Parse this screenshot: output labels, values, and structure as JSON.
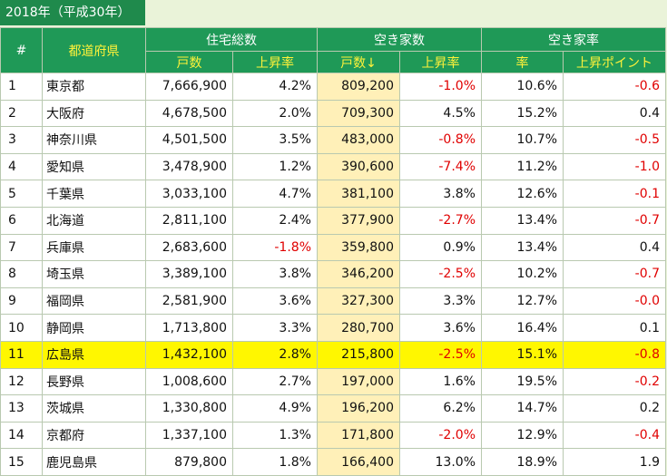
{
  "caption": "2018年（平成30年）",
  "headers": {
    "num": "#",
    "pref": "都道府県",
    "housing": "住宅総数",
    "vacant": "空き家数",
    "vacancy_rate": "空き家率",
    "count": "戸数",
    "rise_rate": "上昇率",
    "count_sorted": "戸数↓",
    "rate": "率",
    "rise_points": "上昇ポイント"
  },
  "rows": [
    {
      "num": "1",
      "pref": "東京都",
      "housing": "7,666,900",
      "housing_rise": "4.2%",
      "vacant": "809,200",
      "vacant_rise": "-1.0%",
      "rate": "10.6%",
      "points": "-0.6"
    },
    {
      "num": "2",
      "pref": "大阪府",
      "housing": "4,678,500",
      "housing_rise": "2.0%",
      "vacant": "709,300",
      "vacant_rise": "4.5%",
      "rate": "15.2%",
      "points": "0.4"
    },
    {
      "num": "3",
      "pref": "神奈川県",
      "housing": "4,501,500",
      "housing_rise": "3.5%",
      "vacant": "483,000",
      "vacant_rise": "-0.8%",
      "rate": "10.7%",
      "points": "-0.5"
    },
    {
      "num": "4",
      "pref": "愛知県",
      "housing": "3,478,900",
      "housing_rise": "1.2%",
      "vacant": "390,600",
      "vacant_rise": "-7.4%",
      "rate": "11.2%",
      "points": "-1.0"
    },
    {
      "num": "5",
      "pref": "千葉県",
      "housing": "3,033,100",
      "housing_rise": "4.7%",
      "vacant": "381,100",
      "vacant_rise": "3.8%",
      "rate": "12.6%",
      "points": "-0.1"
    },
    {
      "num": "6",
      "pref": "北海道",
      "housing": "2,811,100",
      "housing_rise": "2.4%",
      "vacant": "377,900",
      "vacant_rise": "-2.7%",
      "rate": "13.4%",
      "points": "-0.7"
    },
    {
      "num": "7",
      "pref": "兵庫県",
      "housing": "2,683,600",
      "housing_rise": "-1.8%",
      "vacant": "359,800",
      "vacant_rise": "0.9%",
      "rate": "13.4%",
      "points": "0.4"
    },
    {
      "num": "8",
      "pref": "埼玉県",
      "housing": "3,389,100",
      "housing_rise": "3.8%",
      "vacant": "346,200",
      "vacant_rise": "-2.5%",
      "rate": "10.2%",
      "points": "-0.7"
    },
    {
      "num": "9",
      "pref": "福岡県",
      "housing": "2,581,900",
      "housing_rise": "3.6%",
      "vacant": "327,300",
      "vacant_rise": "3.3%",
      "rate": "12.7%",
      "points": "-0.0"
    },
    {
      "num": "10",
      "pref": "静岡県",
      "housing": "1,713,800",
      "housing_rise": "3.3%",
      "vacant": "280,700",
      "vacant_rise": "3.6%",
      "rate": "16.4%",
      "points": "0.1"
    },
    {
      "num": "11",
      "pref": "広島県",
      "housing": "1,432,100",
      "housing_rise": "2.8%",
      "vacant": "215,800",
      "vacant_rise": "-2.5%",
      "rate": "15.1%",
      "points": "-0.8",
      "highlight": true
    },
    {
      "num": "12",
      "pref": "長野県",
      "housing": "1,008,600",
      "housing_rise": "2.7%",
      "vacant": "197,000",
      "vacant_rise": "1.6%",
      "rate": "19.5%",
      "points": "-0.2"
    },
    {
      "num": "13",
      "pref": "茨城県",
      "housing": "1,330,800",
      "housing_rise": "4.9%",
      "vacant": "196,200",
      "vacant_rise": "6.2%",
      "rate": "14.7%",
      "points": "0.2"
    },
    {
      "num": "14",
      "pref": "京都府",
      "housing": "1,337,100",
      "housing_rise": "1.3%",
      "vacant": "171,800",
      "vacant_rise": "-2.0%",
      "rate": "12.9%",
      "points": "-0.4"
    },
    {
      "num": "15",
      "pref": "鹿児島県",
      "housing": "879,800",
      "housing_rise": "1.8%",
      "vacant": "166,400",
      "vacant_rise": "13.0%",
      "rate": "18.9%",
      "points": "1.9"
    }
  ],
  "colors": {
    "header": "#1f9957",
    "caption": "#1f8a4c",
    "negative": "#e00000",
    "highlight": "#fff700",
    "sorted_col": "#fff0b8"
  }
}
